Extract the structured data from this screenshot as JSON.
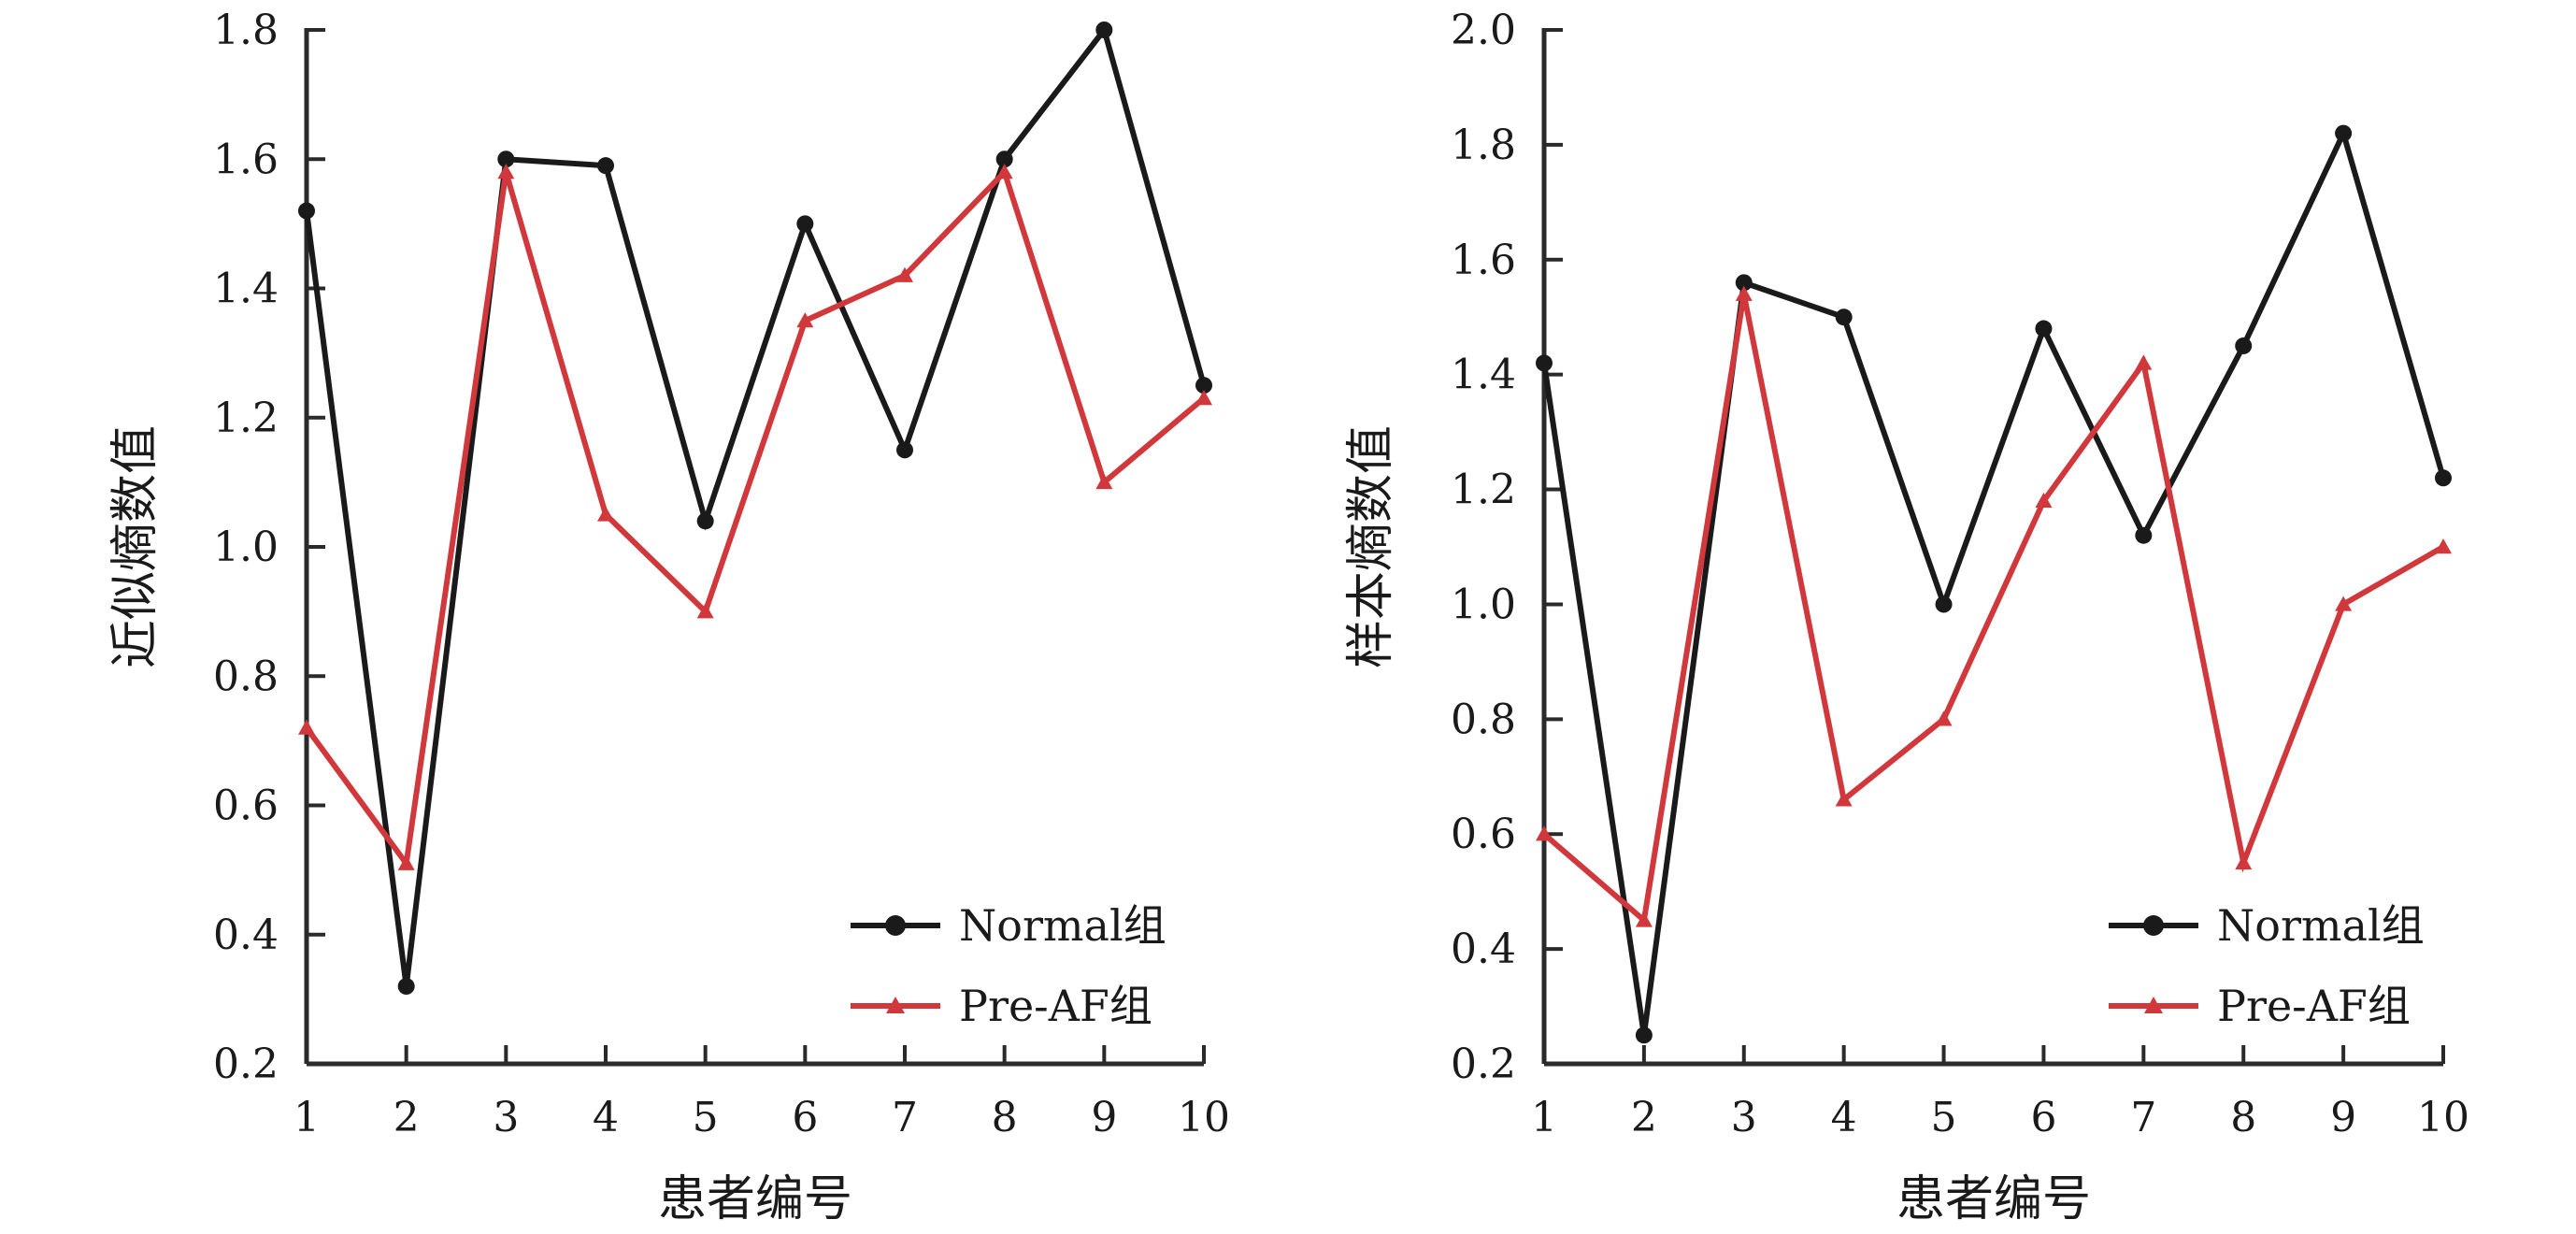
{
  "chart_data": [
    {
      "type": "line",
      "xlabel": "患者编号",
      "ylabel": "近似熵数值",
      "categories": [
        "1",
        "2",
        "3",
        "4",
        "5",
        "6",
        "7",
        "8",
        "9",
        "10"
      ],
      "ylim": [
        0.2,
        1.8
      ],
      "yticks": [
        "0.2",
        "0.4",
        "0.6",
        "0.8",
        "1.0",
        "1.2",
        "1.4",
        "1.6",
        "1.8"
      ],
      "legend_position": "bottom-right",
      "grid": false,
      "series": [
        {
          "name": "Normal组",
          "marker": "circle",
          "color": "#1a1a1a",
          "values": [
            1.52,
            0.32,
            1.6,
            1.59,
            1.04,
            1.5,
            1.15,
            1.6,
            1.8,
            1.25
          ]
        },
        {
          "name": "Pre-AF组",
          "marker": "triangle",
          "color": "#d0383c",
          "values": [
            0.72,
            0.51,
            1.58,
            1.05,
            0.9,
            1.35,
            1.42,
            1.58,
            1.1,
            1.23
          ]
        }
      ]
    },
    {
      "type": "line",
      "xlabel": "患者编号",
      "ylabel": "样本熵数值",
      "categories": [
        "1",
        "2",
        "3",
        "4",
        "5",
        "6",
        "7",
        "8",
        "9",
        "10"
      ],
      "ylim": [
        0.2,
        2.0
      ],
      "yticks": [
        "0.2",
        "0.4",
        "0.6",
        "0.8",
        "1.0",
        "1.2",
        "1.4",
        "1.6",
        "1.8",
        "2.0"
      ],
      "legend_position": "bottom-right",
      "grid": false,
      "series": [
        {
          "name": "Normal组",
          "marker": "circle",
          "color": "#1a1a1a",
          "values": [
            1.42,
            0.25,
            1.56,
            1.5,
            1.0,
            1.48,
            1.12,
            1.45,
            1.82,
            1.22
          ]
        },
        {
          "name": "Pre-AF组",
          "marker": "triangle",
          "color": "#d0383c",
          "values": [
            0.6,
            0.45,
            1.54,
            0.66,
            0.8,
            1.18,
            1.42,
            0.55,
            1.0,
            1.1
          ]
        }
      ]
    }
  ]
}
